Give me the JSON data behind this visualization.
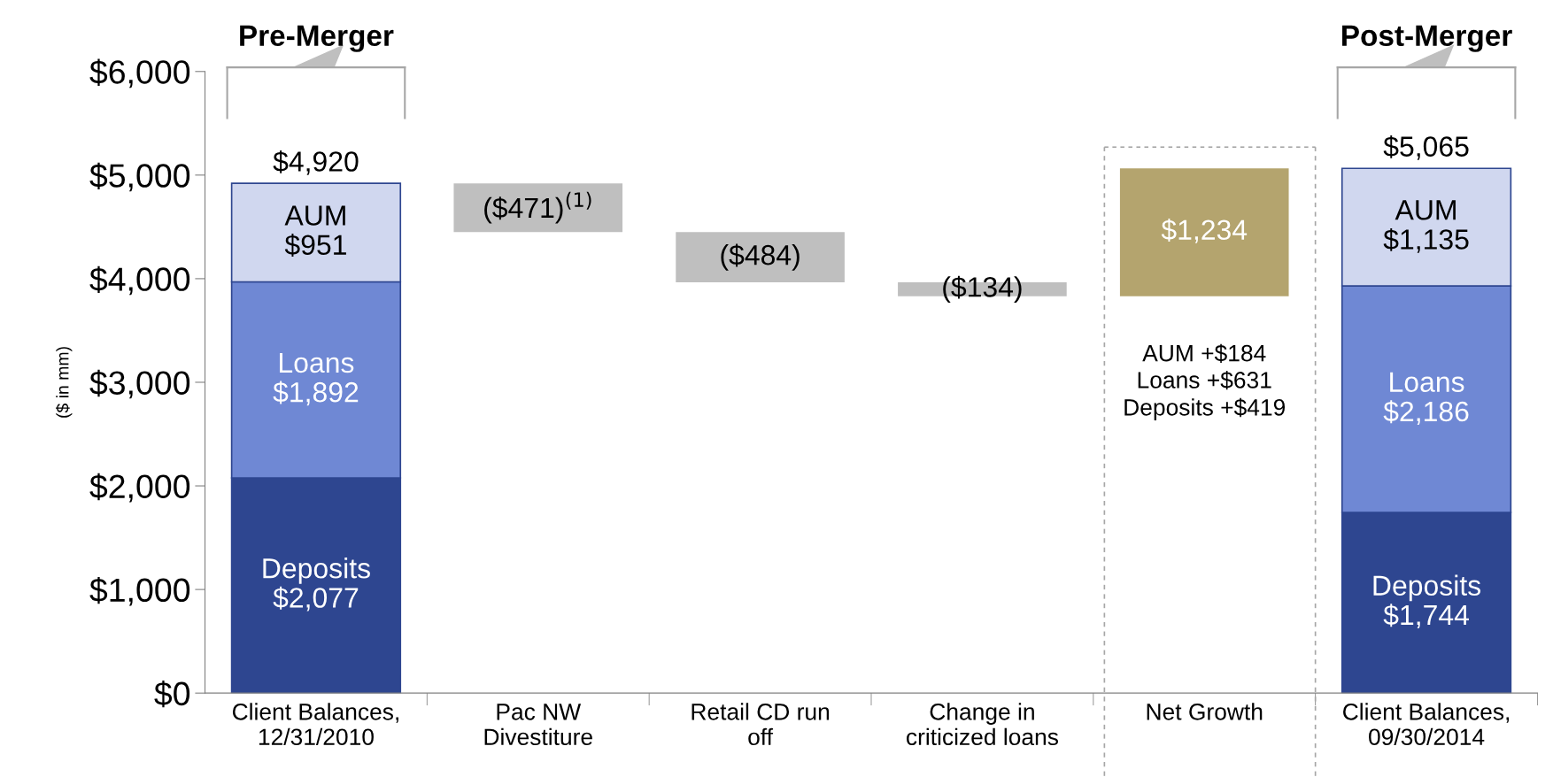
{
  "chart_data": {
    "type": "bar",
    "stacked": true,
    "ylabel": "($ in mm)",
    "categories": [
      "Client Balances,\n12/31/2010",
      "Pac NW\nDivestiture",
      "Retail CD run\noff",
      "Change in\ncriticized loans",
      "Net Growth",
      "Client Balances,\n09/30/2014"
    ],
    "series": [
      {
        "name": "Deposits",
        "color": "#2e4690",
        "values": [
          2077,
          null,
          null,
          null,
          null,
          1744
        ],
        "value_labels": [
          "$2,077",
          null,
          null,
          null,
          null,
          "$1,744"
        ]
      },
      {
        "name": "Loans",
        "color": "#6f88d4",
        "values": [
          1892,
          null,
          null,
          null,
          null,
          2186
        ],
        "value_labels": [
          "$1,892",
          null,
          null,
          null,
          null,
          "$2,186"
        ]
      },
      {
        "name": "AUM",
        "color": "#d0d7ef",
        "values": [
          951,
          null,
          null,
          null,
          null,
          1135
        ],
        "value_labels": [
          "$951",
          null,
          null,
          null,
          null,
          "$1,135"
        ]
      },
      {
        "colors": [
          null,
          "#bfbfbf",
          "#bfbfbf",
          "#bfbfbf",
          "#b4a46e",
          null
        ],
        "values": [
          null,
          471,
          484,
          134,
          1234,
          null
        ],
        "base": [
          null,
          4449,
          3965,
          3831,
          3831,
          null
        ],
        "value_labels": [
          null,
          "($471)$^{(1)}$",
          "($484)",
          "($134)",
          "$1,234",
          null
        ]
      }
    ],
    "totals": [
      "$4,920",
      null,
      null,
      null,
      null,
      "$5,065"
    ],
    "ylim": [
      0,
      6000
    ],
    "yticks": [
      {
        "value": 0,
        "label": "$0"
      },
      {
        "value": 1000,
        "label": "$1,000"
      },
      {
        "value": 2000,
        "label": "$2,000"
      },
      {
        "value": 3000,
        "label": "$3,000"
      },
      {
        "value": 4000,
        "label": "$4,000"
      },
      {
        "value": 5000,
        "label": "$5,000"
      },
      {
        "value": 6000,
        "label": "$6,000"
      }
    ],
    "annotations": [
      "Pre-Merger",
      "Post-Merger",
      "AUM +$184\nLoans +$631\nDeposits +$419"
    ],
    "grid": false,
    "legend": false
  }
}
